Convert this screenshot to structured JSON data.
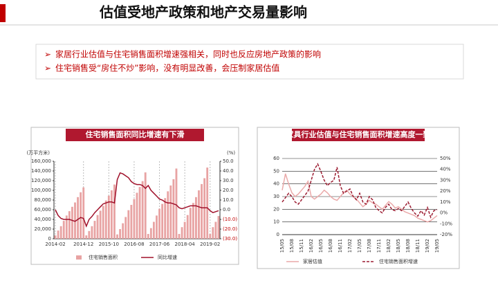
{
  "header": {
    "title": "估值受地产政策和地产交易量影响"
  },
  "bullets": [
    "家居行业估值与住宅销售面积增速强相关，同时也反应房地产政策的影响",
    "住宅销售受“房住不炒”影响，没有明显改善，会压制家居估值"
  ],
  "chart_data": [
    {
      "type": "bar_line",
      "title": "住宅销售面积同比增速有下滑",
      "y_unit_label": "(万平方米)",
      "y2_unit_label": "(%)",
      "categories": [
        "2014-02",
        null,
        null,
        null,
        null,
        null,
        null,
        null,
        null,
        null,
        "2014-12",
        null,
        null,
        null,
        null,
        null,
        null,
        null,
        null,
        "2015-10",
        null,
        null,
        null,
        null,
        null,
        null,
        null,
        null,
        "2016-08",
        null,
        null,
        null,
        null,
        null,
        null,
        null,
        null,
        "2017-06",
        null,
        null,
        null,
        null,
        null,
        null,
        null,
        null,
        "2018-04",
        null,
        null,
        null,
        null,
        null,
        null,
        null,
        null,
        "2019-02",
        null,
        null,
        null
      ],
      "series": [
        {
          "name": "住宅销售面积",
          "type": "bar",
          "color": "#e8a3a3",
          "values": [
            7000,
            17000,
            26000,
            37000,
            48000,
            57000,
            66000,
            75000,
            86000,
            96000,
            106000,
            7000,
            16000,
            26000,
            37000,
            49000,
            58000,
            68000,
            79000,
            89000,
            100000,
            112000,
            9000,
            20000,
            32000,
            45000,
            59000,
            70000,
            82000,
            95000,
            107000,
            119000,
            137000,
            10000,
            22000,
            35000,
            48000,
            62000,
            72000,
            84000,
            98000,
            110000,
            123000,
            145000,
            10000,
            24000,
            35000,
            49000,
            64000,
            74000,
            86000,
            100000,
            113000,
            125000,
            147000,
            10000,
            24000,
            35000,
            47000
          ]
        },
        {
          "name": "同比增速",
          "type": "line",
          "axis": "y2",
          "color": "#a0102a",
          "values": [
            0,
            -6,
            -9,
            -10,
            -10,
            -10,
            -11,
            -12,
            -10,
            -8,
            -9,
            -17,
            -10,
            -7,
            -3,
            0,
            3,
            6,
            7,
            8,
            8,
            7,
            31,
            38,
            37,
            35,
            33,
            29,
            27,
            26,
            26,
            25,
            22,
            25,
            20,
            17,
            14,
            11,
            10,
            8,
            7,
            7,
            6,
            5,
            2,
            1,
            2,
            3,
            4,
            4,
            4,
            3,
            2,
            2,
            2,
            -1,
            -3,
            -2,
            -1
          ]
        }
      ],
      "ylim": [
        0,
        160000
      ],
      "yticks": [
        0,
        {
          "value": 20000,
          "label": "20,000"
        },
        {
          "value": 40000,
          "label": "40,000"
        },
        {
          "value": 60000,
          "label": "60,000"
        },
        {
          "value": 80000,
          "label": "80,000"
        },
        {
          "value": 100000,
          "label": "100,000"
        },
        {
          "value": 120000,
          "label": "120,000"
        },
        {
          "value": 140000,
          "label": "140,000"
        },
        {
          "value": 160000,
          "label": "160,000"
        }
      ],
      "y2lim": [
        -30,
        50
      ],
      "y2ticks": [
        {
          "value": -30,
          "label": "(30.0)"
        },
        {
          "value": -20,
          "label": "(20.0)"
        },
        {
          "value": -10,
          "label": "(10.0)"
        },
        {
          "value": 0,
          "label": "0.0"
        },
        {
          "value": 10,
          "label": "10.0"
        },
        {
          "value": 20,
          "label": "20.0"
        },
        {
          "value": 30,
          "label": "30.0"
        },
        {
          "value": 40,
          "label": "40.0"
        },
        {
          "value": 50,
          "label": "50.0"
        }
      ],
      "grid": false
    },
    {
      "type": "line",
      "title": "家具行业估值与住宅销售面积增速高度一致",
      "categories": [
        "15/05",
        null,
        null,
        "15/08",
        null,
        null,
        "15/11",
        null,
        null,
        "16/02",
        null,
        null,
        "16/05",
        null,
        null,
        "16/08",
        null,
        null,
        "16/11",
        null,
        null,
        "17/02",
        null,
        null,
        "17/05",
        null,
        null,
        "17/08",
        null,
        null,
        "17/11",
        null,
        null,
        "18/02",
        null,
        null,
        "18/05",
        null,
        null,
        "18/08",
        null,
        null,
        "18/11",
        null,
        null,
        "19/02",
        null,
        null,
        "19/05"
      ],
      "series": [
        {
          "name": "家居估值",
          "color": "#eaa9a9",
          "dashed": false,
          "values": [
            35,
            48,
            40,
            33,
            30,
            32,
            35,
            38,
            42,
            30,
            28,
            30,
            32,
            35,
            33,
            30,
            28,
            27,
            30,
            33,
            35,
            32,
            30,
            28,
            25,
            22,
            24,
            27,
            25,
            24,
            22,
            20,
            23,
            26,
            24,
            21,
            22,
            20,
            18,
            17,
            16,
            15,
            13,
            12,
            11,
            10,
            11,
            13,
            15
          ]
        },
        {
          "name": "住宅销售面积增速",
          "axis": "y2",
          "color": "#9b1b30",
          "dashed": true,
          "values": [
            10,
            14,
            18,
            15,
            10,
            8,
            12,
            16,
            20,
            30,
            40,
            45,
            38,
            30,
            25,
            28,
            30,
            42,
            25,
            18,
            20,
            22,
            15,
            12,
            18,
            10,
            8,
            15,
            12,
            5,
            2,
            0,
            5,
            8,
            3,
            2,
            4,
            2,
            6,
            10,
            4,
            0,
            -3,
            2,
            -2,
            5,
            -4,
            2,
            3
          ]
        }
      ],
      "ylim": [
        0,
        60
      ],
      "yticks": [
        0,
        10,
        20,
        30,
        40,
        50,
        60
      ],
      "y2lim": [
        -20,
        50
      ],
      "y2ticks": [
        {
          "value": -20,
          "label": "-20%"
        },
        {
          "value": -10,
          "label": "-10%"
        },
        {
          "value": 0,
          "label": "0%"
        },
        {
          "value": 10,
          "label": "10%"
        },
        {
          "value": 20,
          "label": "20%"
        },
        {
          "value": 30,
          "label": "30%"
        },
        {
          "value": 40,
          "label": "40%"
        },
        {
          "value": 50,
          "label": "50%"
        }
      ],
      "grid": true
    }
  ]
}
